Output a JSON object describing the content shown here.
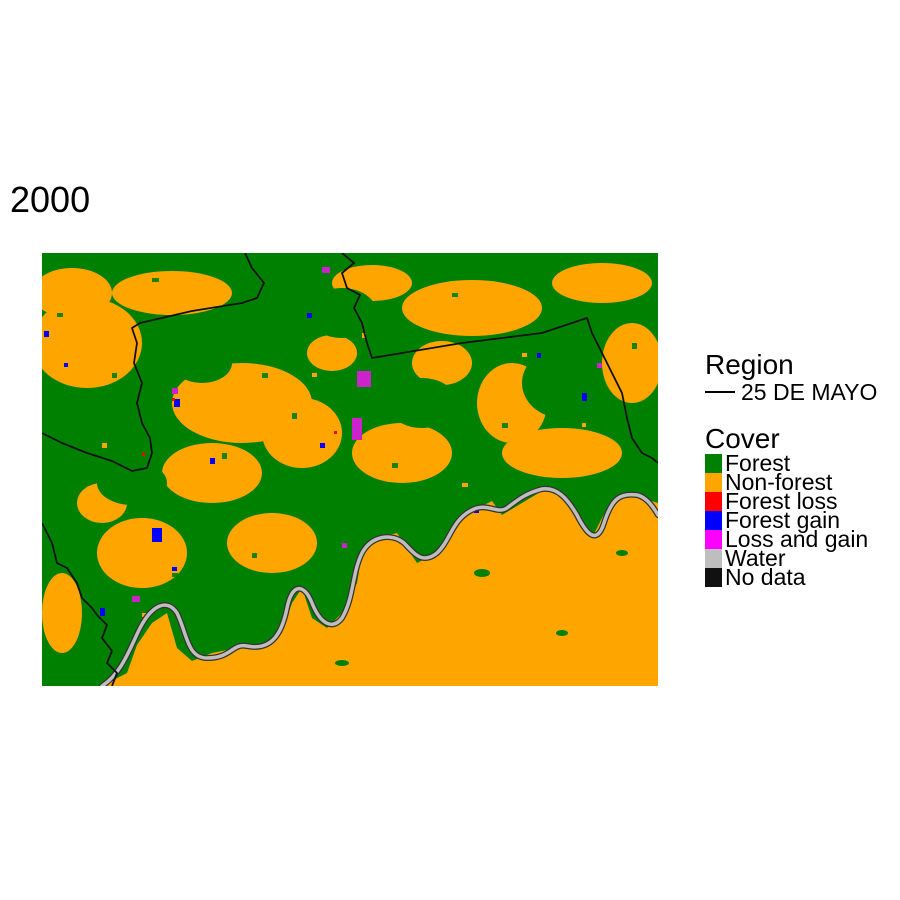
{
  "map": {
    "title": "2000",
    "legend": {
      "region_title": "Region",
      "region_entries": [
        {
          "label": "25 DE MAYO",
          "color": "#000000"
        }
      ],
      "cover_title": "Cover",
      "cover_entries": [
        {
          "label": "Forest",
          "color": "#008000"
        },
        {
          "label": "Non-forest",
          "color": "#FFA500"
        },
        {
          "label": "Forest loss",
          "color": "#FF0000"
        },
        {
          "label": "Forest gain",
          "color": "#0000FF"
        },
        {
          "label": "Loss and gain",
          "color": "#FF00FF"
        },
        {
          "label": "Water",
          "color": "#BEBEBE"
        },
        {
          "label": "No data",
          "color": "#111111"
        }
      ]
    }
  }
}
